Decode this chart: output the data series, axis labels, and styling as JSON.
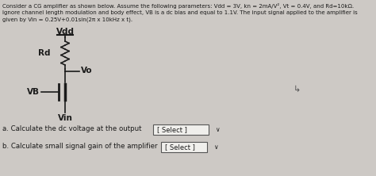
{
  "bg_color": "#cdc9c5",
  "title_text": "Consider a CG amplifier as shown below. Assume the following parameters: Vdd = 3V, kn = 2mA/V², Vt = 0.4V, and Rd=10kΩ.",
  "title_line2": "Ignore channel length modulation and body effect, VB is a dc bias and equal to 1.1V. The input signal applied to the amplifier is",
  "title_line3": "given by Vin = 0.25V+0.01sin(2π x 10kHz x t).",
  "label_Vdd": "Vdd",
  "label_Rd": "Rd",
  "label_Vo": "Vo",
  "label_VB": "VB",
  "label_Vin": "Vin",
  "question_a": "a. Calculate the dc voltage at the output",
  "question_b": "b. Calculate small signal gain of the amplifier",
  "select_text": "[ Select ]",
  "text_color": "#1a1a1a",
  "box_color": "#f0efec",
  "line_color": "#1a1a1a"
}
